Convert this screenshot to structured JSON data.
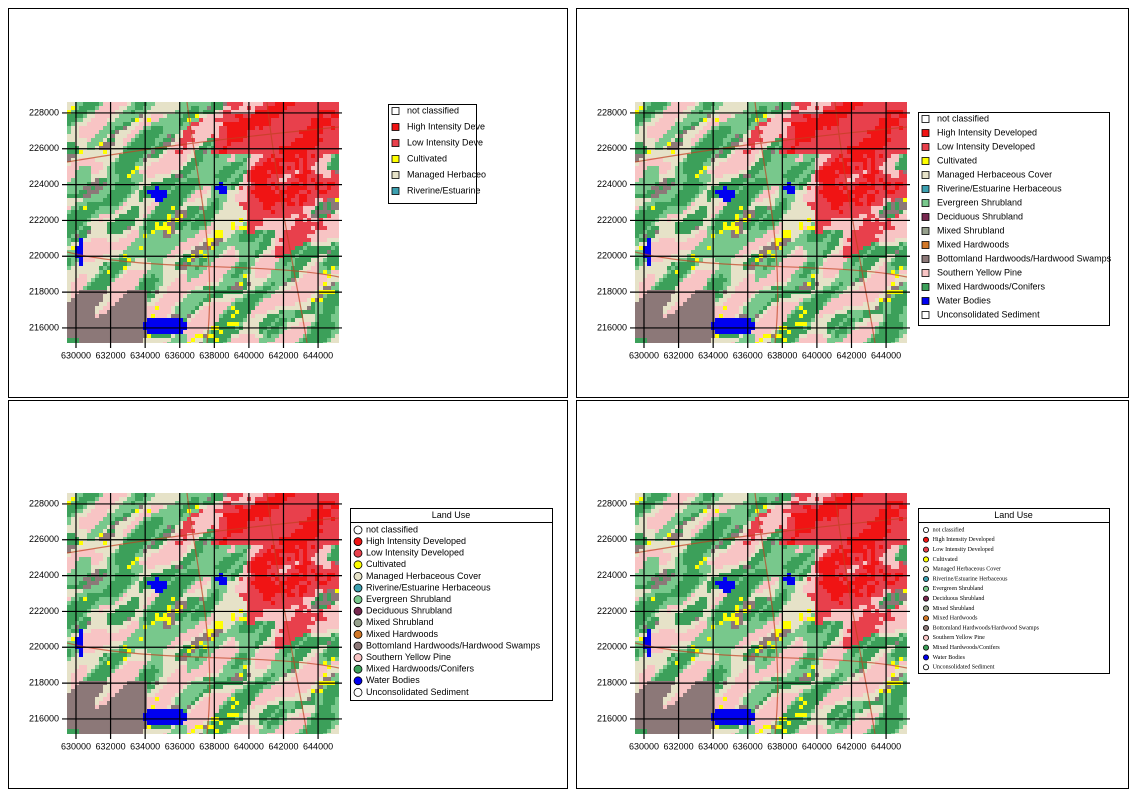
{
  "axes": {
    "xlim": [
      629480,
      645210
    ],
    "ylim": [
      215160,
      228610
    ],
    "xticks": [
      630000,
      632000,
      634000,
      636000,
      638000,
      640000,
      642000,
      644000
    ],
    "yticks": [
      216000,
      218000,
      220000,
      222000,
      224000,
      226000,
      228000
    ]
  },
  "panels": [
    {
      "legend": {
        "marker": "square",
        "items": [
          {
            "label": "not classified",
            "color": "#ffffff"
          },
          {
            "label": "High Intensity Deve",
            "color": "#f01414"
          },
          {
            "label": "Low Intensity Deve",
            "color": "#e8404c"
          },
          {
            "label": "Cultivated",
            "color": "#ffff00"
          },
          {
            "label": "Managed Herbaceo",
            "color": "#e6e2c8"
          },
          {
            "label": "Riverine/Estuarine",
            "color": "#3ca0b0"
          }
        ]
      }
    },
    {
      "legend": {
        "marker": "square",
        "items": [
          {
            "label": "not classified",
            "color": "#ffffff"
          },
          {
            "label": "High Intensity Developed",
            "color": "#f01414"
          },
          {
            "label": "Low Intensity Developed",
            "color": "#e8404c"
          },
          {
            "label": "Cultivated",
            "color": "#ffff00"
          },
          {
            "label": "Managed Herbaceous Cover",
            "color": "#e6e2c8"
          },
          {
            "label": "Riverine/Estuarine Herbaceous",
            "color": "#3ca0b0"
          },
          {
            "label": "Evergreen Shrubland",
            "color": "#78c88c"
          },
          {
            "label": "Deciduous Shrubland",
            "color": "#782850"
          },
          {
            "label": "Mixed Shrubland",
            "color": "#96a08c"
          },
          {
            "label": "Mixed Hardwoods",
            "color": "#d27828"
          },
          {
            "label": "Bottomland Hardwoods/Hardwood Swamps",
            "color": "#8c7878"
          },
          {
            "label": "Southern Yellow Pine",
            "color": "#f8c4c4"
          },
          {
            "label": "Mixed Hardwoods/Conifers",
            "color": "#3ca05a"
          },
          {
            "label": "Water Bodies",
            "color": "#0000f0"
          },
          {
            "label": "Unconsolidated Sediment",
            "color": "#ffffff"
          }
        ]
      }
    },
    {
      "legend": {
        "title": "Land Use",
        "marker": "circle",
        "items": [
          {
            "label": "not classified",
            "color": "#ffffff"
          },
          {
            "label": "High Intensity Developed",
            "color": "#f01414"
          },
          {
            "label": "Low Intensity Developed",
            "color": "#e8404c"
          },
          {
            "label": "Cultivated",
            "color": "#ffff00"
          },
          {
            "label": "Managed Herbaceous Cover",
            "color": "#e6e2c8"
          },
          {
            "label": "Riverine/Estuarine Herbaceous",
            "color": "#3ca0b0"
          },
          {
            "label": "Evergreen Shrubland",
            "color": "#78c88c"
          },
          {
            "label": "Deciduous Shrubland",
            "color": "#782850"
          },
          {
            "label": "Mixed Shrubland",
            "color": "#96a08c"
          },
          {
            "label": "Mixed Hardwoods",
            "color": "#d27828"
          },
          {
            "label": "Bottomland Hardwoods/Hardwood Swamps",
            "color": "#8c7878"
          },
          {
            "label": "Southern Yellow Pine",
            "color": "#f8c4c4"
          },
          {
            "label": "Mixed Hardwoods/Conifers",
            "color": "#3ca05a"
          },
          {
            "label": "Water Bodies",
            "color": "#0000f0"
          },
          {
            "label": "Unconsolidated Sediment",
            "color": "#ffffff"
          }
        ]
      }
    },
    {
      "legend": {
        "title": "Land Use",
        "marker": "circle",
        "items": [
          {
            "label": "not classified",
            "color": "#ffffff"
          },
          {
            "label": "High Intensity Developed",
            "color": "#f01414"
          },
          {
            "label": "Low Intensity Developed",
            "color": "#e8404c"
          },
          {
            "label": "Cultivated",
            "color": "#ffff00"
          },
          {
            "label": "Managed Herbaceous Cover",
            "color": "#e6e2c8"
          },
          {
            "label": "Riverine/Estuarine Herbaceous",
            "color": "#3ca0b0"
          },
          {
            "label": "Evergreen Shrubland",
            "color": "#78c88c"
          },
          {
            "label": "Deciduous Shrubland",
            "color": "#782850"
          },
          {
            "label": "Mixed Shrubland",
            "color": "#96a08c"
          },
          {
            "label": "Mixed Hardwoods",
            "color": "#d27828"
          },
          {
            "label": "Bottomland Hardwoods/Hardwood Swamps",
            "color": "#8c7878"
          },
          {
            "label": "Southern Yellow Pine",
            "color": "#f8c4c4"
          },
          {
            "label": "Mixed Hardwoods/Conifers",
            "color": "#3ca05a"
          },
          {
            "label": "Water Bodies",
            "color": "#0000f0"
          },
          {
            "label": "Unconsolidated Sediment",
            "color": "#ffffff"
          }
        ]
      }
    }
  ]
}
